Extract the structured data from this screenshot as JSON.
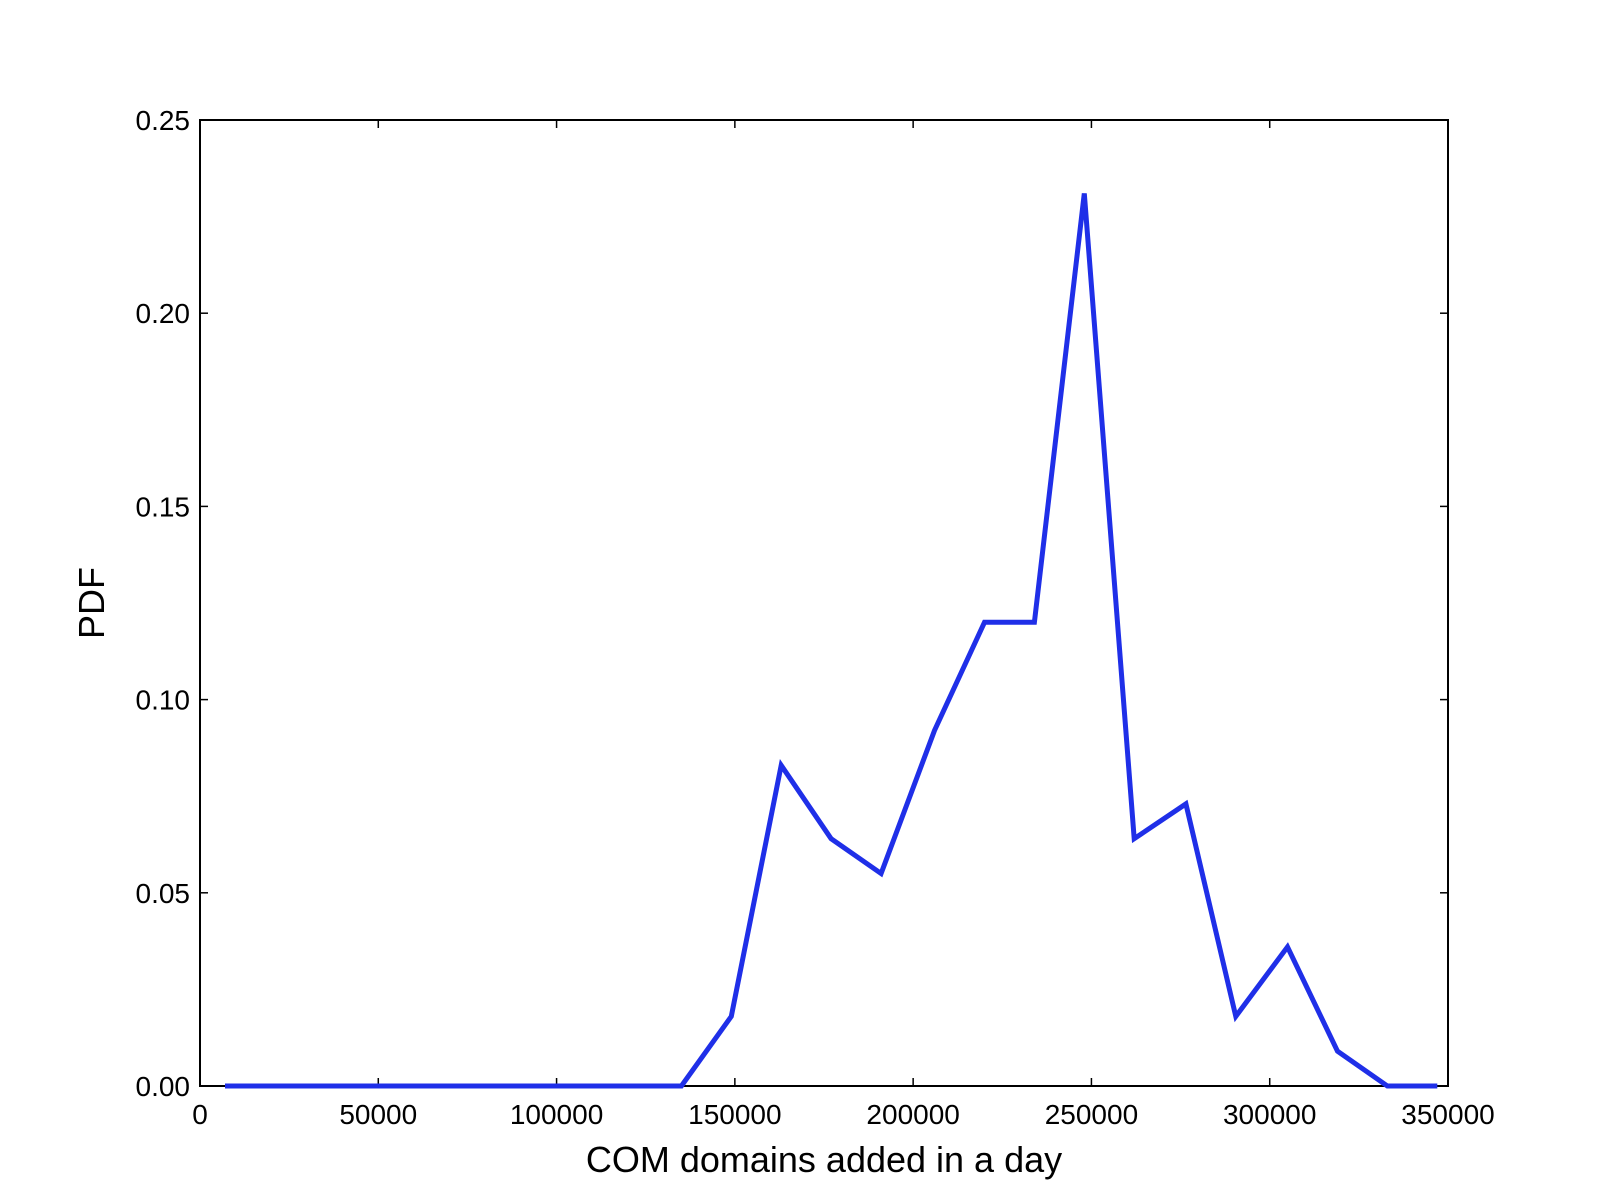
{
  "chart_data": {
    "type": "line",
    "title": "",
    "xlabel": "COM domains added in a day",
    "ylabel": "PDF",
    "xlim": [
      0,
      350000
    ],
    "ylim": [
      0,
      0.25
    ],
    "x_ticks": [
      0,
      50000,
      100000,
      150000,
      200000,
      250000,
      300000,
      350000
    ],
    "x_tick_labels": [
      "0",
      "50000",
      "100000",
      "150000",
      "200000",
      "250000",
      "300000",
      "350000"
    ],
    "y_ticks": [
      0,
      0.05,
      0.1,
      0.15,
      0.2,
      0.25
    ],
    "y_tick_labels": [
      "0.00",
      "0.05",
      "0.10",
      "0.15",
      "0.20",
      "0.25"
    ],
    "grid": false,
    "series": [
      {
        "color": "#1f2fe8",
        "x": [
          7000,
          135000,
          149000,
          163000,
          177000,
          191000,
          206000,
          220000,
          234000,
          248000,
          262000,
          276500,
          290500,
          305000,
          319000,
          333000,
          347000
        ],
        "y": [
          0.0,
          0.0,
          0.018,
          0.083,
          0.064,
          0.055,
          0.092,
          0.12,
          0.12,
          0.231,
          0.064,
          0.073,
          0.018,
          0.036,
          0.009,
          0.0,
          0.0
        ]
      }
    ]
  }
}
